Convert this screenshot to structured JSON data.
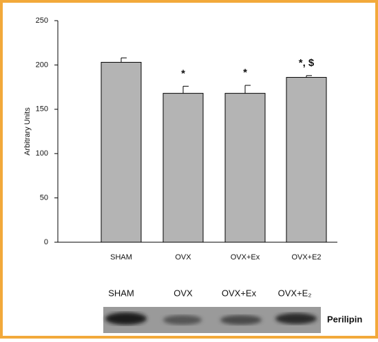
{
  "chart_data": {
    "type": "bar",
    "y_label": "Arbitrary Units",
    "categories": [
      "SHAM",
      "OVX",
      "OVX+Ex",
      "OVX+E2"
    ],
    "values": [
      203,
      168,
      168,
      186
    ],
    "errors": [
      5,
      8,
      9,
      2
    ],
    "value_annotations": [
      null,
      "*",
      "*",
      "*, $"
    ],
    "color": "#b4b4b4",
    "ylim": [
      0,
      250
    ],
    "yticks": [
      0,
      50,
      100,
      150,
      200,
      250
    ],
    "grid": false
  },
  "blot": {
    "lanes": [
      "SHAM",
      "OVX",
      "OVX+Ex",
      "OVX+E₂"
    ],
    "label": "Perilipin"
  }
}
